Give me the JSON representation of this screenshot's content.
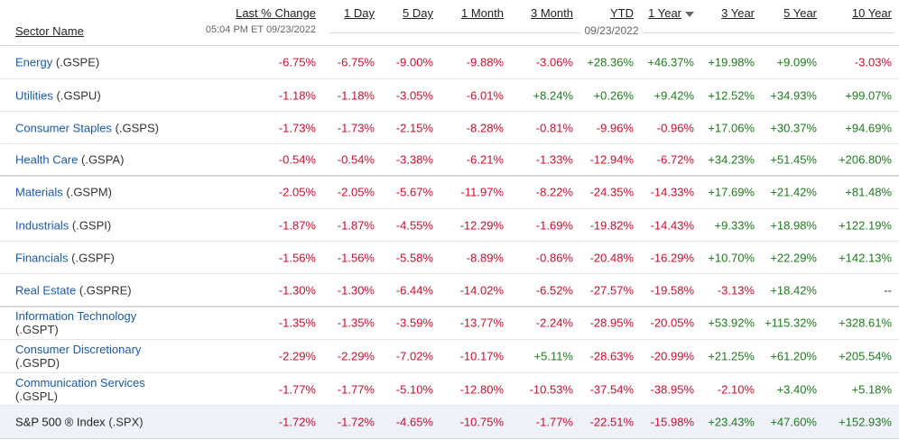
{
  "header": {
    "sector_name": "Sector Name",
    "last_change": "Last % Change",
    "timestamp": "05:04 PM ET 09/23/2022",
    "date_label": "09/23/2022",
    "columns": [
      "1 Day",
      "5 Day",
      "1 Month",
      "3 Month",
      "YTD",
      "1 Year",
      "3 Year",
      "5 Year",
      "10 Year"
    ],
    "sorted_column": "1 Year",
    "sort_direction": "descending"
  },
  "rows": [
    {
      "name": "Energy",
      "symbol": "(.GSPE)",
      "values": [
        "-6.75%",
        "-6.75%",
        "-9.00%",
        "-9.88%",
        "-3.06%",
        "+28.36%",
        "+46.37%",
        "+19.98%",
        "+9.09%",
        "-3.03%"
      ]
    },
    {
      "name": "Utilities",
      "symbol": "(.GSPU)",
      "values": [
        "-1.18%",
        "-1.18%",
        "-3.05%",
        "-6.01%",
        "+8.24%",
        "+0.26%",
        "+9.42%",
        "+12.52%",
        "+34.93%",
        "+99.07%"
      ]
    },
    {
      "name": "Consumer Staples",
      "symbol": "(.GSPS)",
      "values": [
        "-1.73%",
        "-1.73%",
        "-2.15%",
        "-8.28%",
        "-0.81%",
        "-9.96%",
        "-0.96%",
        "+17.06%",
        "+30.37%",
        "+94.69%"
      ]
    },
    {
      "name": "Health Care",
      "symbol": "(.GSPA)",
      "values": [
        "-0.54%",
        "-0.54%",
        "-3.38%",
        "-6.21%",
        "-1.33%",
        "-12.94%",
        "-6.72%",
        "+34.23%",
        "+51.45%",
        "+206.80%"
      ]
    },
    {
      "name": "Materials",
      "symbol": "(.GSPM)",
      "values": [
        "-2.05%",
        "-2.05%",
        "-5.67%",
        "-11.97%",
        "-8.22%",
        "-24.35%",
        "-14.33%",
        "+17.69%",
        "+21.42%",
        "+81.48%"
      ]
    },
    {
      "name": "Industrials",
      "symbol": "(.GSPI)",
      "values": [
        "-1.87%",
        "-1.87%",
        "-4.55%",
        "-12.29%",
        "-1.69%",
        "-19.82%",
        "-14.43%",
        "+9.33%",
        "+18.98%",
        "+122.19%"
      ]
    },
    {
      "name": "Financials",
      "symbol": "(.GSPF)",
      "values": [
        "-1.56%",
        "-1.56%",
        "-5.58%",
        "-8.89%",
        "-0.86%",
        "-20.48%",
        "-16.29%",
        "+10.70%",
        "+22.29%",
        "+142.13%"
      ]
    },
    {
      "name": "Real Estate",
      "symbol": "(.GSPRE)",
      "values": [
        "-1.30%",
        "-1.30%",
        "-6.44%",
        "-14.02%",
        "-6.52%",
        "-27.57%",
        "-19.58%",
        "-3.13%",
        "+18.42%",
        "--"
      ]
    },
    {
      "name": "Information Technology",
      "symbol": "(.GSPT)",
      "values": [
        "-1.35%",
        "-1.35%",
        "-3.59%",
        "-13.77%",
        "-2.24%",
        "-28.95%",
        "-20.05%",
        "+53.92%",
        "+115.32%",
        "+328.61%"
      ]
    },
    {
      "name": "Consumer Discretionary",
      "symbol": "(.GSPD)",
      "values": [
        "-2.29%",
        "-2.29%",
        "-7.02%",
        "-10.17%",
        "+5.11%",
        "-28.63%",
        "-20.99%",
        "+21.25%",
        "+61.20%",
        "+205.54%"
      ]
    },
    {
      "name": "Communication Services",
      "symbol": "(.GSPL)",
      "values": [
        "-1.77%",
        "-1.77%",
        "-5.10%",
        "-12.80%",
        "-10.53%",
        "-37.54%",
        "-38.95%",
        "-2.10%",
        "+3.40%",
        "+5.18%"
      ]
    },
    {
      "name": "S&P 500 ® Index",
      "symbol": "(.SPX)",
      "values": [
        "-1.72%",
        "-1.72%",
        "-4.65%",
        "-10.75%",
        "-1.77%",
        "-22.51%",
        "-15.98%",
        "+23.43%",
        "+47.60%",
        "+152.93%"
      ]
    }
  ],
  "colors": {
    "negative": "#c8102e",
    "positive": "#1e7a1e",
    "link": "#1a5aa6",
    "index_row_bg": "#eef1f7"
  }
}
